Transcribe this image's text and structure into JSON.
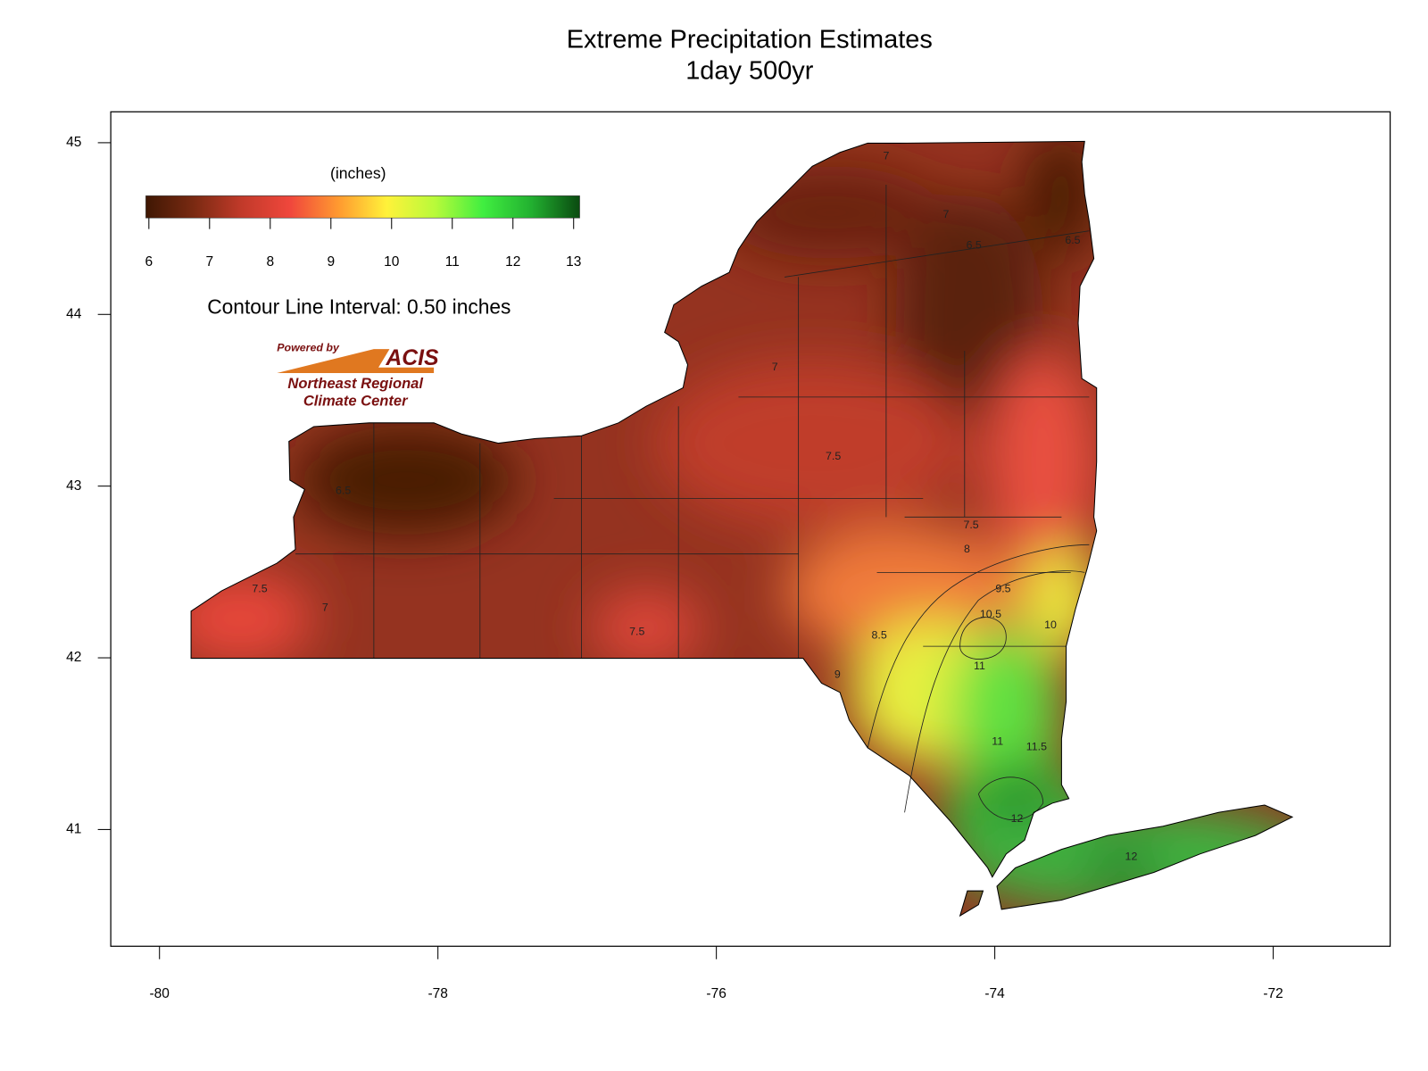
{
  "chart_data": {
    "type": "map",
    "title": "Extreme Precipitation Estimates",
    "subtitle": "1day 500yr",
    "xlim": [
      -80.35,
      -71.16
    ],
    "ylim": [
      40.32,
      45.18
    ],
    "xticks": [
      -80,
      -78,
      -76,
      -74,
      -72
    ],
    "yticks": [
      41,
      42,
      43,
      44,
      45
    ],
    "colorbar": {
      "label": "(inches)",
      "lim": [
        5.95,
        13.1
      ],
      "ticks": [
        6,
        7,
        8,
        9,
        10,
        11,
        12,
        13
      ],
      "colors": [
        "#3f1703",
        "#7a2a12",
        "#c23a2a",
        "#f0473c",
        "#ff9a30",
        "#fff23a",
        "#b8fa3a",
        "#40ee40",
        "#22b030",
        "#0a4a10"
      ]
    },
    "annotation": "Contour Line Interval: 0.50 inches",
    "logo": {
      "tagline": "Powered by",
      "name": "ACIS",
      "org": [
        "Northeast Regional",
        "Climate Center"
      ]
    },
    "contour_labels": [
      {
        "value": 6.5,
        "lon": -78.68,
        "lat": 42.97
      },
      {
        "value": 7,
        "lon": -78.81,
        "lat": 42.29
      },
      {
        "value": 7.5,
        "lon": -79.28,
        "lat": 42.4
      },
      {
        "value": 7.5,
        "lon": -76.57,
        "lat": 42.15
      },
      {
        "value": 7,
        "lon": -75.58,
        "lat": 43.69
      },
      {
        "value": 7.5,
        "lon": -75.16,
        "lat": 43.17
      },
      {
        "value": 7.5,
        "lon": -74.17,
        "lat": 42.77
      },
      {
        "value": 8,
        "lon": -74.2,
        "lat": 42.63
      },
      {
        "value": 8.5,
        "lon": -74.83,
        "lat": 42.13
      },
      {
        "value": 9,
        "lon": -75.13,
        "lat": 41.9
      },
      {
        "value": 9.5,
        "lon": -73.94,
        "lat": 42.4
      },
      {
        "value": 10,
        "lon": -73.6,
        "lat": 42.19
      },
      {
        "value": 10.5,
        "lon": -74.03,
        "lat": 42.25
      },
      {
        "value": 11,
        "lon": -74.11,
        "lat": 41.95
      },
      {
        "value": 11,
        "lon": -73.98,
        "lat": 41.51
      },
      {
        "value": 11.5,
        "lon": -73.7,
        "lat": 41.48
      },
      {
        "value": 12,
        "lon": -73.84,
        "lat": 41.06
      },
      {
        "value": 12,
        "lon": -73.02,
        "lat": 40.84
      },
      {
        "value": 6.5,
        "lon": -74.15,
        "lat": 44.4
      },
      {
        "value": 6.5,
        "lon": -73.44,
        "lat": 44.43
      },
      {
        "value": 7,
        "lon": -74.35,
        "lat": 44.58
      },
      {
        "value": 7,
        "lon": -74.78,
        "lat": 44.92
      }
    ]
  }
}
